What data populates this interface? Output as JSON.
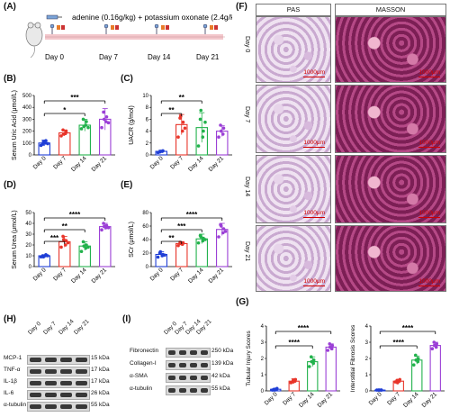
{
  "panel_labels": {
    "A": "(A)",
    "B": "(B)",
    "C": "(C)",
    "D": "(D)",
    "E": "(E)",
    "F": "(F)",
    "G": "(G)",
    "H": "(H)",
    "I": "(I)"
  },
  "timeline": {
    "dose_text": "adenine (0.16g/kg) + potassium oxonate (2.4g/kg)",
    "days": [
      "Day 0",
      "Day 7",
      "Day 14",
      "Day 21"
    ],
    "bar_color": "#f3c7cb"
  },
  "group_colors": [
    "#1f3ed6",
    "#e8352a",
    "#22b24c",
    "#9b3fd6"
  ],
  "x_categories": [
    "Day 0",
    "Day 7",
    "Day 14",
    "Day 21"
  ],
  "histology": {
    "columns": [
      "PAS",
      "MASSON"
    ],
    "rows": [
      "Day 0",
      "Day 7",
      "Day 14",
      "Day 21"
    ],
    "scale_label": "1000μm"
  },
  "blots_H": {
    "lanes": [
      "Day 0",
      "Day 7",
      "Day 14",
      "Day 21"
    ],
    "rows": [
      {
        "protein": "MCP-1",
        "size": "15 kDa"
      },
      {
        "protein": "TNF-α",
        "size": "17 kDa"
      },
      {
        "protein": "IL-1β",
        "size": "17 kDa"
      },
      {
        "protein": "IL-6",
        "size": "26 kDa"
      },
      {
        "protein": "α-tubulin",
        "size": "55 kDa"
      }
    ]
  },
  "blots_I": {
    "lanes": [
      "Day 0",
      "Day 7",
      "Day 14",
      "Day 21"
    ],
    "rows": [
      {
        "protein": "Fibronectin",
        "size": "250 kDa"
      },
      {
        "protein": "Collagen-I",
        "size": "139 kDa"
      },
      {
        "protein": "α-SMA",
        "size": "42 kDa"
      },
      {
        "protein": "α-tubulin",
        "size": "55 kDa"
      }
    ]
  },
  "chart_data": [
    {
      "id": "B",
      "type": "bar",
      "ylabel": "Serum Uric Acid (μmol/L)",
      "ylim": [
        0,
        500
      ],
      "yticks": [
        0,
        100,
        200,
        300,
        400,
        500
      ],
      "categories": [
        "Day 0",
        "Day 7",
        "Day 14",
        "Day 21"
      ],
      "values": [
        100,
        185,
        250,
        300
      ],
      "errors": [
        25,
        25,
        50,
        90
      ],
      "points": [
        [
          80,
          100,
          120,
          90,
          110,
          95
        ],
        [
          160,
          180,
          200,
          210,
          175
        ],
        [
          220,
          250,
          280,
          300,
          240,
          230
        ],
        [
          230,
          280,
          320,
          360,
          300,
          270
        ]
      ],
      "significance": [
        {
          "from": 0,
          "to": 3,
          "label": "***"
        },
        {
          "from": 0,
          "to": 2,
          "label": "*"
        }
      ]
    },
    {
      "id": "C",
      "type": "bar",
      "ylabel": "UACR (g/mol)",
      "ylim": [
        0,
        10
      ],
      "yticks": [
        0,
        2,
        4,
        6,
        8,
        10
      ],
      "categories": [
        "Day 0",
        "Day 7",
        "Day 14",
        "Day 21"
      ],
      "values": [
        0.6,
        5.1,
        4.6,
        4.0
      ],
      "errors": [
        0.2,
        1.7,
        2.5,
        0.9
      ],
      "points": [
        [
          0.4,
          0.6,
          0.7,
          0.5,
          0.6
        ],
        [
          3.0,
          4.0,
          5.5,
          6.2,
          6.5,
          4.5
        ],
        [
          1.5,
          3.0,
          4.0,
          6.0,
          7.5,
          5.5
        ],
        [
          3.0,
          3.5,
          4.5,
          5.0,
          4.0
        ]
      ],
      "significance": [
        {
          "from": 0,
          "to": 2,
          "label": "**"
        },
        {
          "from": 0,
          "to": 1,
          "label": "**"
        }
      ]
    },
    {
      "id": "D",
      "type": "bar",
      "ylabel": "Serum Urea (μmol/L)",
      "ylim": [
        0,
        50
      ],
      "yticks": [
        0,
        10,
        20,
        30,
        40,
        50
      ],
      "categories": [
        "Day 0",
        "Day 7",
        "Day 14",
        "Day 21"
      ],
      "values": [
        10,
        23,
        19,
        37
      ],
      "errors": [
        1,
        5,
        4,
        3
      ],
      "points": [
        [
          9,
          10,
          11,
          10,
          9,
          10
        ],
        [
          18,
          20,
          24,
          28,
          25,
          22
        ],
        [
          14,
          17,
          20,
          23,
          19,
          18
        ],
        [
          34,
          36,
          38,
          40,
          37,
          36
        ]
      ],
      "significance": [
        {
          "from": 0,
          "to": 3,
          "label": "****"
        },
        {
          "from": 0,
          "to": 2,
          "label": "**"
        },
        {
          "from": 0,
          "to": 1,
          "label": "***"
        }
      ]
    },
    {
      "id": "E",
      "type": "bar",
      "ylabel": "SCr (μmol/L)",
      "ylim": [
        0,
        80
      ],
      "yticks": [
        0,
        20,
        40,
        60,
        80
      ],
      "categories": [
        "Day 0",
        "Day 7",
        "Day 14",
        "Day 21"
      ],
      "values": [
        18,
        34,
        41,
        55
      ],
      "errors": [
        4,
        3,
        7,
        9
      ],
      "points": [
        [
          14,
          16,
          18,
          20,
          22,
          17
        ],
        [
          31,
          33,
          35,
          36,
          34
        ],
        [
          35,
          38,
          42,
          46,
          44,
          40
        ],
        [
          44,
          50,
          56,
          62,
          60,
          52
        ]
      ],
      "significance": [
        {
          "from": 0,
          "to": 3,
          "label": "****"
        },
        {
          "from": 0,
          "to": 2,
          "label": "***"
        },
        {
          "from": 0,
          "to": 1,
          "label": "**"
        }
      ]
    },
    {
      "id": "G1",
      "type": "bar",
      "ylabel": "Tubular Injury Scores",
      "ylim": [
        0,
        4
      ],
      "yticks": [
        0,
        1,
        2,
        3,
        4
      ],
      "categories": [
        "Day 0",
        "Day 7",
        "Day 14",
        "Day 21"
      ],
      "values": [
        0.1,
        0.6,
        1.8,
        2.7
      ],
      "errors": [
        0.05,
        0.15,
        0.3,
        0.2
      ],
      "points": [
        [
          0.05,
          0.1,
          0.15,
          0.1,
          0.05
        ],
        [
          0.5,
          0.6,
          0.7,
          0.55,
          0.65
        ],
        [
          1.5,
          1.7,
          1.9,
          2.1,
          1.8
        ],
        [
          2.5,
          2.6,
          2.8,
          2.9,
          2.7
        ]
      ],
      "significance": [
        {
          "from": 0,
          "to": 3,
          "label": "****"
        },
        {
          "from": 0,
          "to": 2,
          "label": "****"
        }
      ]
    },
    {
      "id": "G2",
      "type": "bar",
      "ylabel": "Interstitial Fibrosis Scores",
      "ylim": [
        0,
        4
      ],
      "yticks": [
        0,
        1,
        2,
        3,
        4
      ],
      "categories": [
        "Day 0",
        "Day 7",
        "Day 14",
        "Day 21"
      ],
      "values": [
        0.05,
        0.6,
        1.9,
        2.8
      ],
      "errors": [
        0.05,
        0.1,
        0.25,
        0.2
      ],
      "points": [
        [
          0.05,
          0.05,
          0.05,
          0.05,
          0.05
        ],
        [
          0.55,
          0.6,
          0.7,
          0.65,
          0.5
        ],
        [
          1.6,
          1.8,
          2.0,
          2.2,
          1.9
        ],
        [
          2.6,
          2.7,
          2.9,
          3.0,
          2.8
        ]
      ],
      "significance": [
        {
          "from": 0,
          "to": 3,
          "label": "****"
        },
        {
          "from": 0,
          "to": 2,
          "label": "****"
        }
      ]
    }
  ]
}
